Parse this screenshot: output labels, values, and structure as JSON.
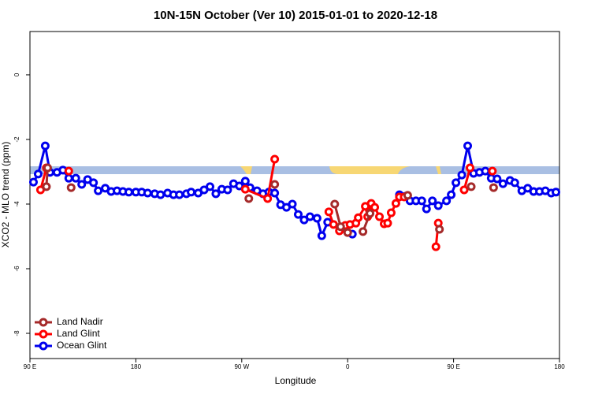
{
  "chart_data": {
    "type": "line",
    "title": "10N-15N October (Ver 10)   2015-01-01 to 2020-12-18",
    "x_label": "Longitude",
    "y_label": "XCO2 - MLO trend (ppm)",
    "xlim": [
      90,
      540
    ],
    "xticks": [
      {
        "value": 90,
        "label": "90 E"
      },
      180,
      {
        "value": 270,
        "label": "90 W"
      },
      {
        "value": 360,
        "label": "0"
      },
      {
        "value": 450,
        "label": "90 E"
      },
      {
        "value": 540,
        "label": "180"
      }
    ],
    "ylim": [
      -8.78,
      1.34
    ],
    "yticks": [
      0,
      -2,
      -4,
      -6,
      -8
    ],
    "grid": false,
    "legend": "bottom-left",
    "series": [
      {
        "name": "Land Nadir",
        "color": "#a52a2a",
        "x": [
          104,
          105,
          null,
          125,
          null,
          276,
          null,
          298,
          null,
          349,
          354,
          360,
          null,
          373,
          379,
          null,
          411,
          null,
          438,
          null,
          465,
          null,
          484
        ],
        "values": [
          -3.46,
          -2.88,
          null,
          -3.49,
          null,
          -3.83,
          null,
          -3.39,
          null,
          -4.0,
          -4.7,
          -4.88,
          null,
          -4.85,
          -4.29,
          null,
          -3.73,
          null,
          -4.78,
          null,
          -3.46,
          null,
          -3.49
        ]
      },
      {
        "name": "Land Glint",
        "color": "#ff0000",
        "x": [
          99,
          104,
          null,
          123,
          null,
          273,
          292,
          298,
          null,
          344,
          348,
          353,
          358,
          362,
          367,
          369,
          375,
          377,
          380,
          383,
          387,
          391,
          394,
          397,
          401,
          404,
          408,
          null,
          435,
          437,
          null,
          459,
          464,
          null,
          483
        ],
        "values": [
          -3.56,
          -2.88,
          null,
          -2.98,
          null,
          -3.54,
          -3.83,
          -2.61,
          null,
          -4.24,
          -4.63,
          -4.83,
          -4.66,
          -4.63,
          -4.59,
          -4.42,
          -4.07,
          -4.39,
          -3.98,
          -4.1,
          -4.39,
          -4.61,
          -4.59,
          -4.27,
          -3.98,
          -3.78,
          -3.78,
          null,
          -5.32,
          -4.59,
          null,
          -3.56,
          -2.88,
          null,
          -2.98
        ]
      },
      {
        "name": "Ocean Glint",
        "color": "#0000ee",
        "x": [
          93,
          97,
          103,
          107,
          113,
          118,
          123,
          129,
          134,
          139,
          144,
          148,
          154,
          159,
          164,
          169,
          174,
          180,
          185,
          190,
          196,
          201,
          207,
          212,
          217,
          223,
          227,
          233,
          238,
          243,
          248,
          253,
          258,
          263,
          268,
          273,
          277,
          283,
          288,
          293,
          298,
          303,
          308,
          313,
          318,
          323,
          328,
          334,
          338,
          343,
          364,
          null,
          404,
          409,
          413,
          418,
          423,
          427,
          432,
          437,
          444,
          448,
          452,
          457,
          462,
          467,
          472,
          477,
          482,
          487,
          492,
          498,
          502,
          508,
          513,
          518,
          523,
          528,
          533,
          537
        ],
        "values": [
          -3.32,
          -3.07,
          -2.2,
          -3.02,
          -3.02,
          -2.95,
          -3.2,
          -3.2,
          -3.39,
          -3.24,
          -3.34,
          -3.59,
          -3.51,
          -3.61,
          -3.59,
          -3.61,
          -3.63,
          -3.63,
          -3.63,
          -3.66,
          -3.68,
          -3.71,
          -3.66,
          -3.71,
          -3.71,
          -3.68,
          -3.63,
          -3.66,
          -3.56,
          -3.46,
          -3.68,
          -3.54,
          -3.56,
          -3.37,
          -3.44,
          -3.29,
          -3.49,
          -3.59,
          -3.68,
          -3.63,
          -3.66,
          -4.02,
          -4.1,
          -4.0,
          -4.32,
          -4.49,
          -4.39,
          -4.44,
          -4.98,
          -4.56,
          -4.93,
          null,
          -3.71,
          -3.76,
          -3.9,
          -3.9,
          -3.9,
          -4.15,
          -3.9,
          -4.05,
          -3.9,
          -3.71,
          -3.34,
          -3.1,
          -2.2,
          -3.05,
          -3.02,
          -2.98,
          -3.2,
          -3.22,
          -3.37,
          -3.27,
          -3.34,
          -3.59,
          -3.51,
          -3.61,
          -3.61,
          -3.59,
          -3.66,
          -3.63
        ]
      }
    ]
  }
}
